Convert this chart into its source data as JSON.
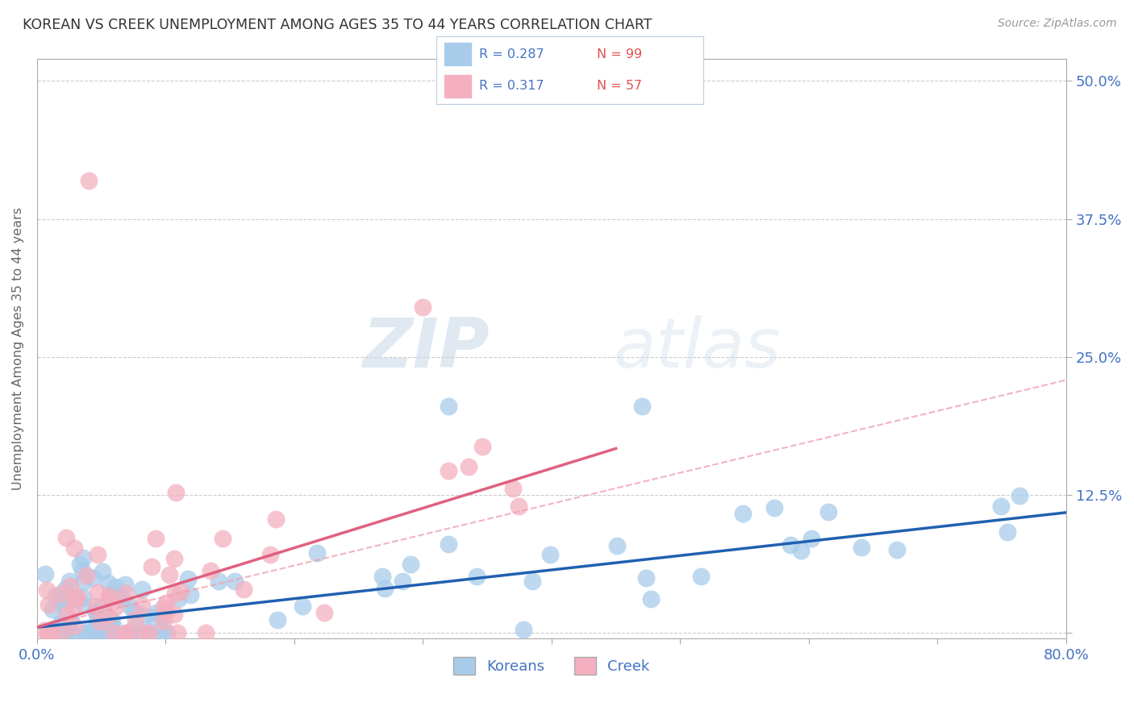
{
  "title": "KOREAN VS CREEK UNEMPLOYMENT AMONG AGES 35 TO 44 YEARS CORRELATION CHART",
  "source_text": "Source: ZipAtlas.com",
  "ylabel": "Unemployment Among Ages 35 to 44 years",
  "xlim": [
    0.0,
    0.8
  ],
  "ylim": [
    -0.005,
    0.52
  ],
  "xticks": [
    0.0,
    0.1,
    0.2,
    0.3,
    0.4,
    0.5,
    0.6,
    0.7,
    0.8
  ],
  "ytick_positions": [
    0.0,
    0.125,
    0.25,
    0.375,
    0.5
  ],
  "yticklabels_right": [
    "",
    "12.5%",
    "25.0%",
    "37.5%",
    "50.0%"
  ],
  "korean_scatter_color": "#A8CCEA",
  "creek_scatter_color": "#F4B0C0",
  "korean_line_color": "#2060B0",
  "creek_solid_line_color": "#E06080",
  "creek_dashed_line_color": "#F0A0B0",
  "r_korean": 0.287,
  "n_korean": 99,
  "r_creek": 0.317,
  "n_creek": 57,
  "legend_label_korean": "Koreans",
  "legend_label_creek": "Creek",
  "watermark_zip": "ZIP",
  "watermark_atlas": "atlas",
  "background_color": "#FFFFFF",
  "grid_color": "#CCCCCC",
  "title_color": "#333333",
  "axis_label_color": "#666666",
  "legend_text_blue": "#4472C4",
  "legend_text_red": "#E05050",
  "tick_label_color": "#4472C4",
  "seed": 42,
  "korean_slope": 0.13,
  "korean_intercept": 0.005,
  "creek_solid_slope": 0.36,
  "creek_solid_intercept": 0.005,
  "creek_dashed_slope": 0.28,
  "creek_dashed_intercept": 0.005
}
